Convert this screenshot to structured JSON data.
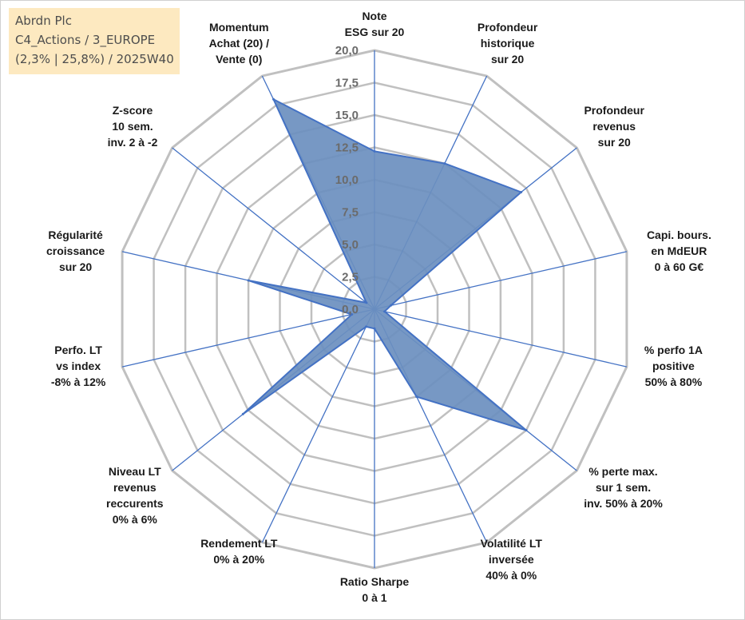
{
  "title_box": {
    "line1": "Abrdn Plc",
    "line2": "C4_Actions / 3_EUROPE",
    "line3": "(2,3% | 25,8%) / 2025W40"
  },
  "chart_data": {
    "type": "radar",
    "title": "Abrdn Plc",
    "scale_min": 0,
    "scale_max": 20,
    "tick_values": [
      0,
      2.5,
      5,
      7.5,
      10,
      12.5,
      15,
      17.5,
      20
    ],
    "tick_labels": [
      "0,0",
      "2,5",
      "5,0",
      "7,5",
      "10,0",
      "12,5",
      "15,0",
      "17,5",
      "20,0"
    ],
    "grid": true,
    "axes": [
      [
        "Note",
        "ESG sur 20"
      ],
      [
        "Profondeur",
        "historique",
        "sur 20"
      ],
      [
        "Profondeur",
        "revenus",
        "sur 20"
      ],
      [
        "Capi. bours.",
        "en MdEUR",
        "0 à 60 G€"
      ],
      [
        "% perfo 1A",
        "positive",
        "50% à 80%"
      ],
      [
        "% perte max.",
        "sur 1 sem.",
        "inv. 50% à 20%"
      ],
      [
        "Volatilité LT",
        "inversée",
        "40% à 0%"
      ],
      [
        "Ratio Sharpe",
        "0 à 1"
      ],
      [
        "Rendement LT",
        "0% à 20%"
      ],
      [
        "Niveau LT",
        "revenus",
        "reccurents",
        "0% à 6%"
      ],
      [
        "Perfo. LT",
        "vs index",
        "-8% à 12%"
      ],
      [
        "Régularité",
        "croissance",
        "sur 20"
      ],
      [
        "Z-score",
        "10 sem.",
        "inv. 2 à -2"
      ],
      [
        "Momentum",
        "Achat (20) /",
        "Vente (0)"
      ]
    ],
    "series": [
      {
        "values": [
          12.2,
          12.5,
          14.5,
          1.3,
          0.8,
          15.0,
          7.5,
          1.5,
          1.5,
          13.0,
          1.8,
          10.0,
          0.8,
          18.0
        ],
        "fill": "#6b8fbf",
        "stroke": "#4472c4"
      }
    ],
    "colors": {
      "grid": "#c0c0c0",
      "spoke": "#4472c4"
    }
  }
}
